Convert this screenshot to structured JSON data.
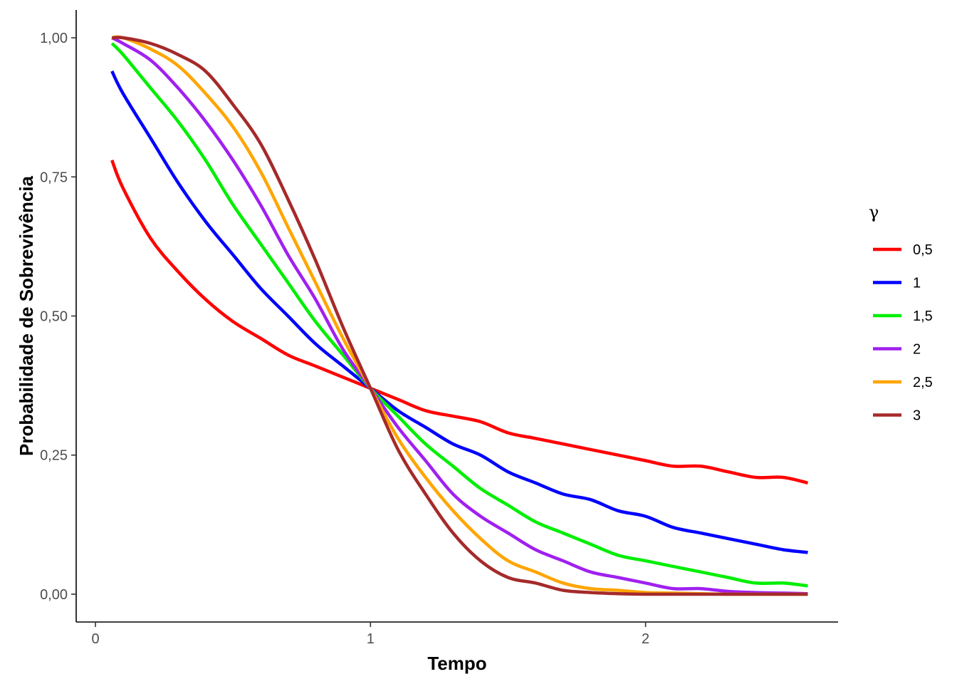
{
  "chart_data": {
    "type": "line",
    "title": "",
    "xlabel": "Tempo",
    "ylabel": "Probabilidade de Sobrevivência",
    "xlim": [
      -0.07,
      2.7
    ],
    "ylim": [
      -0.05,
      1.05
    ],
    "x_ticks": [
      0,
      1,
      2
    ],
    "x_tick_labels": [
      "0",
      "1",
      "2"
    ],
    "y_ticks": [
      0,
      0.25,
      0.5,
      0.75,
      1
    ],
    "y_tick_labels": [
      "0,00",
      "0,25",
      "0,50",
      "0,75",
      "1,00"
    ],
    "grid": false,
    "legend": {
      "title": "γ",
      "position": "right"
    },
    "x": [
      0.06,
      0.1,
      0.2,
      0.3,
      0.4,
      0.5,
      0.6,
      0.7,
      0.8,
      0.9,
      1.0,
      1.1,
      1.2,
      1.3,
      1.4,
      1.5,
      1.6,
      1.7,
      1.8,
      1.9,
      2.0,
      2.1,
      2.2,
      2.3,
      2.4,
      2.5,
      2.59
    ],
    "series": [
      {
        "name": "0,5",
        "color": "#ff0000",
        "values": [
          0.78,
          0.73,
          0.64,
          0.58,
          0.53,
          0.49,
          0.46,
          0.43,
          0.41,
          0.39,
          0.37,
          0.35,
          0.33,
          0.32,
          0.31,
          0.29,
          0.28,
          0.27,
          0.26,
          0.25,
          0.24,
          0.23,
          0.23,
          0.22,
          0.21,
          0.21,
          0.2
        ]
      },
      {
        "name": "1",
        "color": "#0000ff",
        "values": [
          0.94,
          0.9,
          0.82,
          0.74,
          0.67,
          0.61,
          0.55,
          0.5,
          0.45,
          0.41,
          0.37,
          0.33,
          0.3,
          0.27,
          0.25,
          0.22,
          0.2,
          0.18,
          0.17,
          0.15,
          0.14,
          0.12,
          0.11,
          0.1,
          0.09,
          0.08,
          0.075
        ]
      },
      {
        "name": "1,5",
        "color": "#00ee00",
        "values": [
          0.99,
          0.97,
          0.91,
          0.85,
          0.78,
          0.7,
          0.63,
          0.56,
          0.49,
          0.43,
          0.37,
          0.32,
          0.27,
          0.23,
          0.19,
          0.16,
          0.13,
          0.11,
          0.09,
          0.07,
          0.06,
          0.05,
          0.04,
          0.03,
          0.02,
          0.02,
          0.015
        ]
      },
      {
        "name": "2",
        "color": "#a020f0",
        "values": [
          1.0,
          0.99,
          0.96,
          0.91,
          0.85,
          0.78,
          0.7,
          0.61,
          0.53,
          0.44,
          0.37,
          0.3,
          0.24,
          0.18,
          0.14,
          0.11,
          0.08,
          0.06,
          0.04,
          0.03,
          0.02,
          0.01,
          0.01,
          0.005,
          0.003,
          0.002,
          0.001
        ]
      },
      {
        "name": "2,5",
        "color": "#ffa500",
        "values": [
          1.0,
          1.0,
          0.98,
          0.95,
          0.9,
          0.84,
          0.76,
          0.66,
          0.56,
          0.46,
          0.37,
          0.28,
          0.21,
          0.15,
          0.1,
          0.06,
          0.04,
          0.02,
          0.01,
          0.007,
          0.003,
          0.002,
          0.001,
          0.0,
          0.0,
          0.0,
          0.0
        ]
      },
      {
        "name": "3",
        "color": "#a52a2a",
        "values": [
          1.0,
          1.0,
          0.99,
          0.97,
          0.94,
          0.88,
          0.81,
          0.71,
          0.6,
          0.48,
          0.37,
          0.26,
          0.18,
          0.11,
          0.06,
          0.03,
          0.02,
          0.007,
          0.003,
          0.001,
          0.0,
          0.0,
          0.0,
          0.0,
          0.0,
          0.0,
          0.0
        ]
      }
    ]
  }
}
